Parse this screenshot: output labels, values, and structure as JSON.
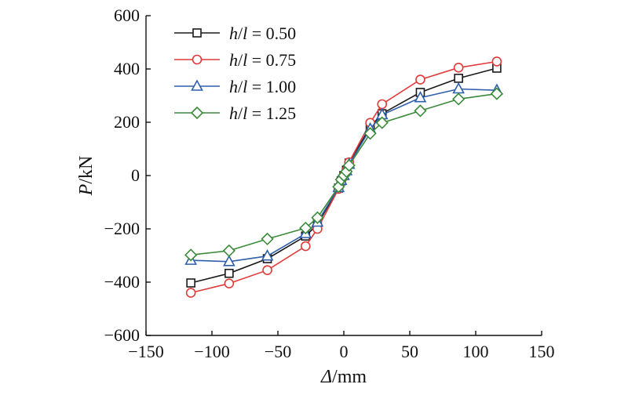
{
  "chart_data": {
    "type": "line",
    "title": "",
    "xlabel": {
      "var": "Δ",
      "unit": "/mm"
    },
    "ylabel": {
      "var": "P",
      "unit": "/kN"
    },
    "xlim": [
      -150,
      150
    ],
    "ylim": [
      -600,
      600
    ],
    "xticks": [
      -150,
      -100,
      -50,
      0,
      50,
      100,
      150
    ],
    "yticks": [
      -600,
      -400,
      -200,
      0,
      200,
      400,
      600
    ],
    "xtick_labels": [
      "−150",
      "−100",
      "−50",
      "0",
      "50",
      "100",
      "150"
    ],
    "ytick_labels": [
      "−600",
      "−400",
      "−200",
      "0",
      "200",
      "400",
      "600"
    ],
    "grid": false,
    "legend_position": "top-left",
    "series": [
      {
        "name": "h/l = 0.50",
        "legend": {
          "a": "h",
          "sep": "/",
          "b": "l",
          "rest": " = 0.50"
        },
        "color": "#1a1a1a",
        "marker": "square",
        "x": [
          -116,
          -87,
          -58,
          -29,
          -20,
          -4,
          -2,
          0,
          2,
          4,
          20,
          29,
          58,
          87,
          116
        ],
        "y": [
          -403,
          -367,
          -312,
          -227,
          -183,
          -47,
          -20,
          0,
          20,
          47,
          183,
          232,
          312,
          365,
          403
        ]
      },
      {
        "name": "h/l = 0.75",
        "legend": {
          "a": "h",
          "sep": "/",
          "b": "l",
          "rest": " = 0.75"
        },
        "color": "#e03a3a",
        "marker": "circle",
        "x": [
          -116,
          -87,
          -58,
          -29,
          -20,
          -4,
          -2,
          0,
          2,
          4,
          20,
          29,
          58,
          87,
          116
        ],
        "y": [
          -440,
          -405,
          -355,
          -265,
          -200,
          -50,
          -20,
          0,
          20,
          50,
          198,
          268,
          360,
          405,
          428
        ]
      },
      {
        "name": "h/l = 1.00",
        "legend": {
          "a": "h",
          "sep": "/",
          "b": "l",
          "rest": " = 1.00"
        },
        "color": "#2f5faa",
        "marker": "triangle",
        "x": [
          -116,
          -87,
          -58,
          -29,
          -20,
          -4,
          -2,
          0,
          2,
          4,
          20,
          29,
          58,
          87,
          116
        ],
        "y": [
          -318,
          -323,
          -302,
          -218,
          -175,
          -45,
          -18,
          0,
          18,
          42,
          175,
          228,
          292,
          325,
          320
        ]
      },
      {
        "name": "h/l = 1.25",
        "legend": {
          "a": "h",
          "sep": "/",
          "b": "l",
          "rest": " = 1.25"
        },
        "color": "#3a8a3a",
        "marker": "diamond",
        "x": [
          -116,
          -87,
          -58,
          -29,
          -20,
          -4,
          -2,
          0,
          2,
          4,
          20,
          29,
          58,
          87,
          116
        ],
        "y": [
          -298,
          -282,
          -238,
          -197,
          -158,
          -42,
          -15,
          0,
          15,
          38,
          158,
          198,
          243,
          287,
          307
        ]
      }
    ]
  }
}
